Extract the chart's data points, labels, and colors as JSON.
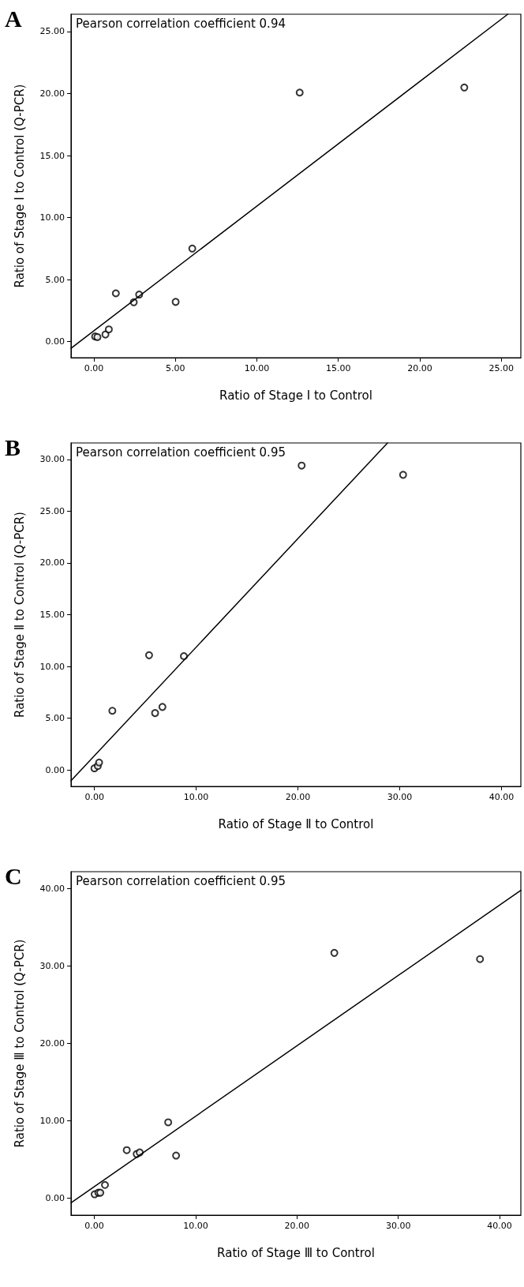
{
  "chart_data": [
    {
      "type": "scatter",
      "title": "A",
      "xlabel": "Ratio of Stage I to Control",
      "ylabel": "Ratio of Stage I to Control (Q-PCR)",
      "annotations": [
        "Pearson correlation coefficient 0.94"
      ],
      "xlim": [
        -1.4,
        26.2
      ],
      "ylim": [
        -1.3,
        26.4
      ],
      "xticks": [
        {
          "value": 0,
          "label": "0.00"
        },
        {
          "value": 5,
          "label": "5.00"
        },
        {
          "value": 10,
          "label": "10.00"
        },
        {
          "value": 15,
          "label": "15.00"
        },
        {
          "value": 20,
          "label": "20.00"
        },
        {
          "value": 25,
          "label": "25.00"
        }
      ],
      "yticks": [
        {
          "value": 0,
          "label": "0.00"
        },
        {
          "value": 5,
          "label": "5.00"
        },
        {
          "value": 10,
          "label": "10.00"
        },
        {
          "value": 15,
          "label": "15.00"
        },
        {
          "value": 20,
          "label": "20.00"
        },
        {
          "value": 25,
          "label": "25.00"
        }
      ],
      "grid": false,
      "series": [
        {
          "type": "scatter",
          "color": "#000000",
          "marker": "circle",
          "x": [
            0.08,
            0.22,
            0.71,
            0.92,
            1.35,
            2.45,
            2.78,
            5.02,
            6.04,
            12.63,
            22.73
          ],
          "values": [
            0.41,
            0.36,
            0.57,
            0.98,
            3.89,
            3.17,
            3.79,
            3.2,
            7.5,
            20.08,
            20.49
          ]
        },
        {
          "type": "line",
          "color": "#000000",
          "marker": "none",
          "line_style": "solid",
          "x": [
            -1.4,
            25.4
          ],
          "values": [
            -0.54,
            26.4
          ]
        }
      ]
    },
    {
      "type": "scatter",
      "title": "B",
      "xlabel": "Ratio of Stage Ⅱ to Control",
      "ylabel": "Ratio of Stage Ⅱ to Control (Q-PCR)",
      "annotations": [
        "Pearson correlation coefficient 0.95"
      ],
      "xlim": [
        -2.3,
        41.9
      ],
      "ylim": [
        -1.6,
        31.6
      ],
      "xticks": [
        {
          "value": 0,
          "label": "0.00"
        },
        {
          "value": 10,
          "label": "10.00"
        },
        {
          "value": 20,
          "label": "20.00"
        },
        {
          "value": 30,
          "label": "30.00"
        },
        {
          "value": 40,
          "label": "40.00"
        }
      ],
      "yticks": [
        {
          "value": 0,
          "label": "0.00"
        },
        {
          "value": 5,
          "label": "5.00"
        },
        {
          "value": 10,
          "label": "10.00"
        },
        {
          "value": 15,
          "label": "15.00"
        },
        {
          "value": 20,
          "label": "20.00"
        },
        {
          "value": 25,
          "label": "25.00"
        },
        {
          "value": 30,
          "label": "30.00"
        }
      ],
      "grid": false,
      "series": [
        {
          "type": "scatter",
          "color": "#000000",
          "marker": "circle",
          "x": [
            0.0,
            0.33,
            0.46,
            1.76,
            5.37,
            5.96,
            6.68,
            8.79,
            20.36,
            30.33
          ],
          "values": [
            0.15,
            0.37,
            0.71,
            5.71,
            11.08,
            5.49,
            6.08,
            10.99,
            29.41,
            28.52
          ]
        },
        {
          "type": "line",
          "color": "#000000",
          "marker": "none",
          "line_style": "solid",
          "x": [
            -2.3,
            28.8
          ],
          "values": [
            -1.05,
            31.6
          ]
        }
      ]
    },
    {
      "type": "scatter",
      "title": "C",
      "xlabel": "Ratio of Stage Ⅲ to Control",
      "ylabel": "Ratio of Stage Ⅲ to Control (Q-PCR)",
      "annotations": [
        "Pearson correlation coefficient 0.95"
      ],
      "xlim": [
        -2.3,
        42.1
      ],
      "ylim": [
        -2.2,
        42.2
      ],
      "xticks": [
        {
          "value": 0,
          "label": "0.00"
        },
        {
          "value": 10,
          "label": "10.00"
        },
        {
          "value": 20,
          "label": "20.00"
        },
        {
          "value": 30,
          "label": "30.00"
        },
        {
          "value": 40,
          "label": "40.00"
        }
      ],
      "yticks": [
        {
          "value": 0,
          "label": "0.00"
        },
        {
          "value": 10,
          "label": "10.00"
        },
        {
          "value": 20,
          "label": "20.00"
        },
        {
          "value": 30,
          "label": "30.00"
        },
        {
          "value": 40,
          "label": "40.00"
        }
      ],
      "grid": false,
      "series": [
        {
          "type": "scatter",
          "color": "#000000",
          "marker": "circle",
          "x": [
            0.03,
            0.39,
            0.59,
            1.05,
            3.2,
            4.18,
            4.48,
            7.29,
            8.07,
            23.69,
            38.07
          ],
          "values": [
            0.5,
            0.7,
            0.7,
            1.7,
            6.2,
            5.7,
            5.9,
            9.8,
            5.5,
            31.7,
            30.9
          ]
        },
        {
          "type": "line",
          "color": "#000000",
          "marker": "none",
          "line_style": "solid",
          "x": [
            -2.3,
            42.1
          ],
          "values": [
            -0.6,
            39.8
          ]
        }
      ]
    }
  ]
}
